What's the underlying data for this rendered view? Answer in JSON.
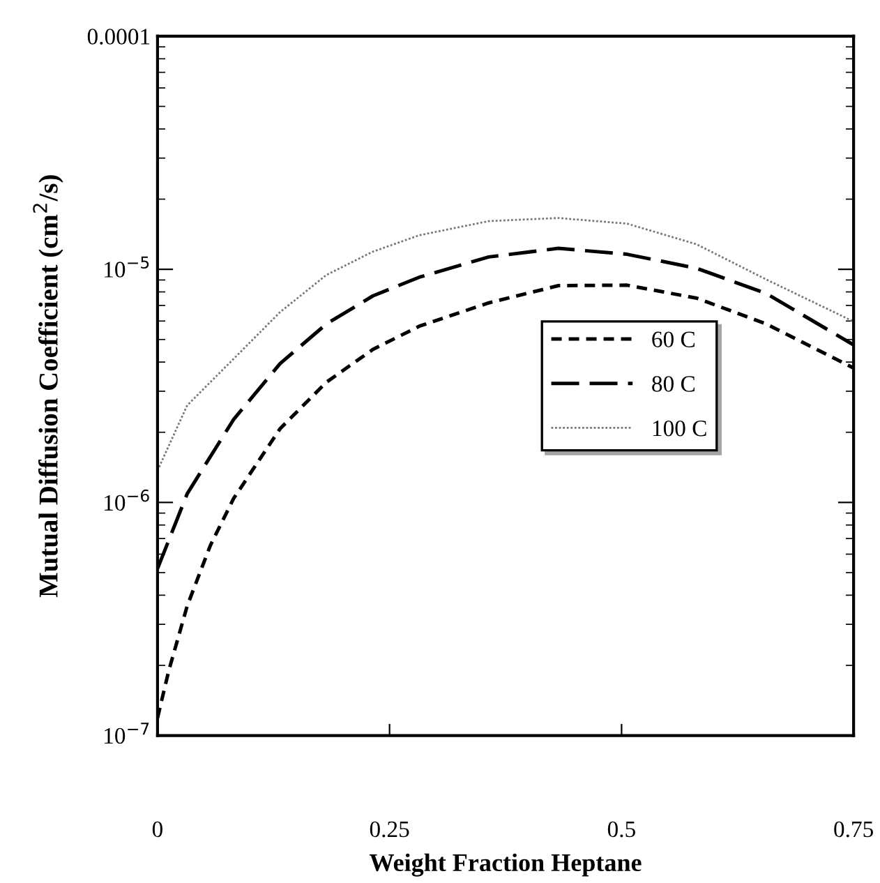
{
  "chart_data": {
    "type": "line",
    "xlabel": "Weight Fraction Heptane",
    "ylabel": "Mutual Diffusion Coefficient (cm$^{2}$/s)",
    "log": "y",
    "xlim": [
      0,
      0.75
    ],
    "xticks": [
      0,
      0.25,
      0.5,
      0.75
    ],
    "ylim": [
      1e-07,
      0.0001
    ],
    "yticks": [
      {
        "value": 1e-07,
        "label": "10$^{−7}$"
      },
      {
        "value": 1e-06,
        "label": "10$^{−6}$"
      },
      {
        "value": 1e-05,
        "label": "10$^{−5}$"
      },
      0.0001
    ],
    "grid": false,
    "legend": "right",
    "marker": "none",
    "series": [
      {
        "name": "60 C",
        "color": "#000000",
        "line_style": "dashed",
        "x": [
          0,
          0.012,
          0.032,
          0.057,
          0.082,
          0.132,
          0.182,
          0.232,
          0.282,
          0.357,
          0.432,
          0.506,
          0.581,
          0.656,
          0.75
        ],
        "values": [
          1.19e-07,
          1.89e-07,
          3.6e-07,
          6.55e-07,
          1.04e-06,
          2.07e-06,
          3.28e-06,
          4.53e-06,
          5.7e-06,
          7.18e-06,
          8.51e-06,
          8.55e-06,
          7.52e-06,
          5.83e-06,
          3.77e-06
        ]
      },
      {
        "name": "80 C",
        "color": "#000000",
        "line_style": "longdash",
        "x": [
          0,
          0.032,
          0.082,
          0.132,
          0.182,
          0.232,
          0.282,
          0.357,
          0.432,
          0.506,
          0.581,
          0.656,
          0.75
        ],
        "values": [
          5.2e-07,
          1.09e-06,
          2.27e-06,
          3.94e-06,
          5.83e-06,
          7.69e-06,
          9.25e-06,
          1.13e-05,
          1.23e-05,
          1.16e-05,
          1.01e-05,
          7.87e-06,
          4.74e-06
        ]
      },
      {
        "name": "100 C",
        "color": "#777777",
        "line_style": "dotted",
        "x": [
          0,
          0.032,
          0.082,
          0.132,
          0.182,
          0.232,
          0.282,
          0.357,
          0.432,
          0.506,
          0.581,
          0.656,
          0.75
        ],
        "values": [
          1.37e-06,
          2.61e-06,
          4.13e-06,
          6.55e-06,
          9.46e-06,
          1.19e-05,
          1.4e-05,
          1.61e-05,
          1.66e-05,
          1.57e-05,
          1.28e-05,
          9.04e-06,
          5.97e-06
        ]
      }
    ]
  }
}
